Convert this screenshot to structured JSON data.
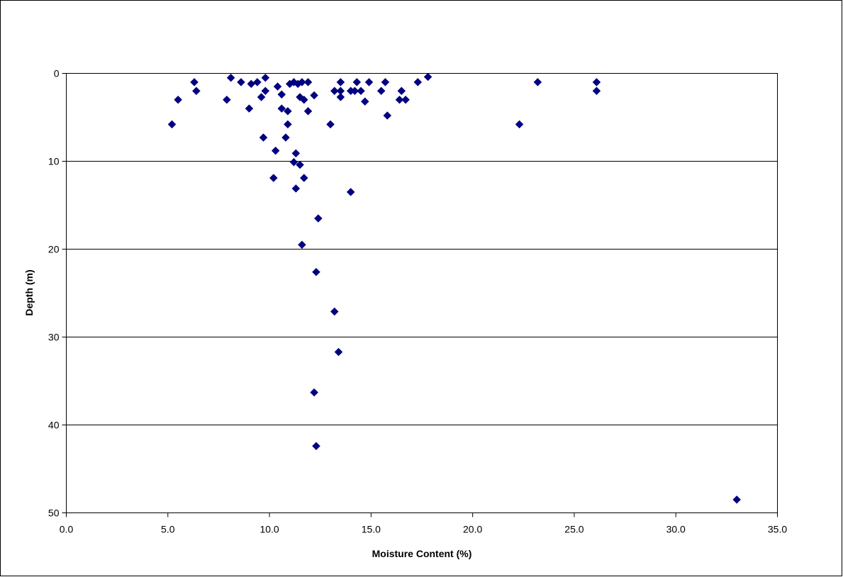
{
  "chart_data": {
    "type": "scatter",
    "title": "",
    "xlabel": "Moisture Content (%)",
    "ylabel": "Depth (m)",
    "xlim": [
      0,
      35
    ],
    "ylim": [
      0,
      50
    ],
    "y_inverted": true,
    "x_ticks": [
      "0.0",
      "5.0",
      "10.0",
      "15.0",
      "20.0",
      "25.0",
      "30.0",
      "35.0"
    ],
    "y_ticks": [
      "0",
      "10",
      "20",
      "30",
      "40",
      "50"
    ],
    "grid": "horizontal",
    "legend": "none",
    "marker": "diamond",
    "marker_color": "#000080",
    "points": [
      {
        "x": 6.3,
        "y": 1.0
      },
      {
        "x": 6.4,
        "y": 2.0
      },
      {
        "x": 5.5,
        "y": 3.0
      },
      {
        "x": 5.2,
        "y": 5.8
      },
      {
        "x": 8.1,
        "y": 0.5
      },
      {
        "x": 8.6,
        "y": 1.0
      },
      {
        "x": 9.1,
        "y": 1.2
      },
      {
        "x": 9.4,
        "y": 1.0
      },
      {
        "x": 9.8,
        "y": 0.5
      },
      {
        "x": 9.8,
        "y": 2.0
      },
      {
        "x": 7.9,
        "y": 3.0
      },
      {
        "x": 9.0,
        "y": 4.0
      },
      {
        "x": 9.6,
        "y": 2.7
      },
      {
        "x": 9.7,
        "y": 7.3
      },
      {
        "x": 10.4,
        "y": 1.5
      },
      {
        "x": 10.6,
        "y": 2.4
      },
      {
        "x": 10.6,
        "y": 4.0
      },
      {
        "x": 10.8,
        "y": 7.3
      },
      {
        "x": 10.9,
        "y": 5.8
      },
      {
        "x": 10.9,
        "y": 4.3
      },
      {
        "x": 11.0,
        "y": 1.2
      },
      {
        "x": 11.2,
        "y": 1.0
      },
      {
        "x": 11.4,
        "y": 1.2
      },
      {
        "x": 11.5,
        "y": 2.7
      },
      {
        "x": 11.6,
        "y": 1.0
      },
      {
        "x": 11.7,
        "y": 3.0
      },
      {
        "x": 11.9,
        "y": 1.0
      },
      {
        "x": 11.9,
        "y": 4.3
      },
      {
        "x": 12.2,
        "y": 2.5
      },
      {
        "x": 10.3,
        "y": 8.8
      },
      {
        "x": 11.3,
        "y": 9.1
      },
      {
        "x": 11.2,
        "y": 10.1
      },
      {
        "x": 11.5,
        "y": 10.4
      },
      {
        "x": 10.2,
        "y": 11.9
      },
      {
        "x": 11.7,
        "y": 11.9
      },
      {
        "x": 11.3,
        "y": 13.1
      },
      {
        "x": 13.2,
        "y": 2.0
      },
      {
        "x": 13.5,
        "y": 1.0
      },
      {
        "x": 13.5,
        "y": 2.0
      },
      {
        "x": 13.5,
        "y": 2.7
      },
      {
        "x": 13.0,
        "y": 5.8
      },
      {
        "x": 14.0,
        "y": 2.0
      },
      {
        "x": 14.2,
        "y": 2.0
      },
      {
        "x": 14.3,
        "y": 1.0
      },
      {
        "x": 14.5,
        "y": 2.0
      },
      {
        "x": 14.7,
        "y": 3.2
      },
      {
        "x": 14.9,
        "y": 1.0
      },
      {
        "x": 15.5,
        "y": 2.0
      },
      {
        "x": 15.7,
        "y": 1.0
      },
      {
        "x": 15.8,
        "y": 4.8
      },
      {
        "x": 16.4,
        "y": 3.0
      },
      {
        "x": 16.5,
        "y": 2.0
      },
      {
        "x": 16.7,
        "y": 3.0
      },
      {
        "x": 17.3,
        "y": 1.0
      },
      {
        "x": 17.8,
        "y": 0.4
      },
      {
        "x": 14.0,
        "y": 13.5
      },
      {
        "x": 12.4,
        "y": 16.5
      },
      {
        "x": 11.6,
        "y": 19.5
      },
      {
        "x": 12.3,
        "y": 22.6
      },
      {
        "x": 13.2,
        "y": 27.1
      },
      {
        "x": 13.4,
        "y": 31.7
      },
      {
        "x": 12.2,
        "y": 36.3
      },
      {
        "x": 12.3,
        "y": 42.4
      },
      {
        "x": 22.3,
        "y": 5.8
      },
      {
        "x": 23.2,
        "y": 1.0
      },
      {
        "x": 26.1,
        "y": 1.0
      },
      {
        "x": 26.1,
        "y": 2.0
      },
      {
        "x": 33.0,
        "y": 48.5
      }
    ]
  }
}
